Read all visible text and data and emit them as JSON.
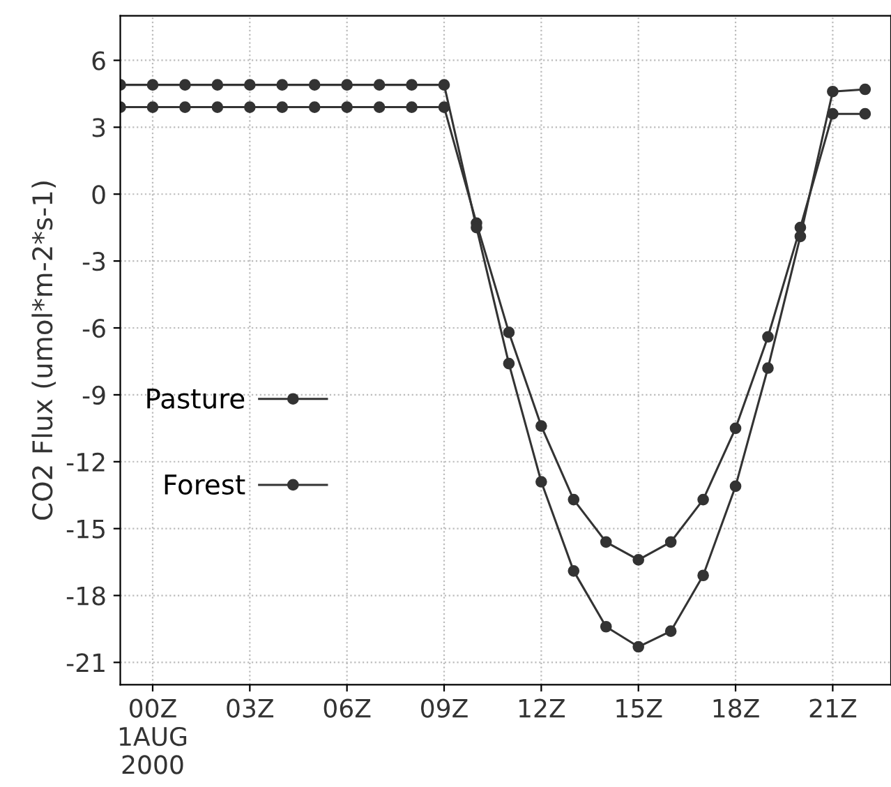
{
  "chart_data": {
    "type": "line",
    "ylabel": "CO2 Flux (umol*m-2*s-1)",
    "x": [
      -1,
      0,
      1,
      2,
      3,
      4,
      5,
      6,
      7,
      8,
      9,
      10,
      11,
      12,
      13,
      14,
      15,
      16,
      17,
      18,
      19,
      20,
      21,
      22
    ],
    "series": [
      {
        "name": "Pasture",
        "color": "#333333",
        "values": [
          3.9,
          3.9,
          3.9,
          3.9,
          3.9,
          3.9,
          3.9,
          3.9,
          3.9,
          3.9,
          3.9,
          -1.3,
          -6.2,
          -10.4,
          -13.7,
          -15.6,
          -16.4,
          -15.6,
          -13.7,
          -10.5,
          -6.4,
          -1.5,
          3.6,
          3.6
        ]
      },
      {
        "name": "Forest",
        "color": "#333333",
        "values": [
          4.9,
          4.9,
          4.9,
          4.9,
          4.9,
          4.9,
          4.9,
          4.9,
          4.9,
          4.9,
          4.9,
          -1.5,
          -7.6,
          -12.9,
          -16.9,
          -19.4,
          -20.3,
          -19.6,
          -17.1,
          -13.1,
          -7.8,
          -1.9,
          4.6,
          4.7
        ]
      }
    ],
    "xlim": [
      -1,
      22.8
    ],
    "ylim": [
      -22,
      8
    ],
    "xticks": [
      {
        "value": 0,
        "label": "00Z\n1AUG\n2000"
      },
      {
        "value": 3,
        "label": "03Z"
      },
      {
        "value": 6,
        "label": "06Z"
      },
      {
        "value": 9,
        "label": "09Z"
      },
      {
        "value": 12,
        "label": "12Z"
      },
      {
        "value": 15,
        "label": "15Z"
      },
      {
        "value": 18,
        "label": "18Z"
      },
      {
        "value": 21,
        "label": "21Z"
      }
    ],
    "yticks": [
      6,
      3,
      0,
      -3,
      -6,
      -9,
      -12,
      -15,
      -18,
      -21
    ],
    "grid": true,
    "legend": "left",
    "marker": "circle",
    "line_style": "solid"
  }
}
